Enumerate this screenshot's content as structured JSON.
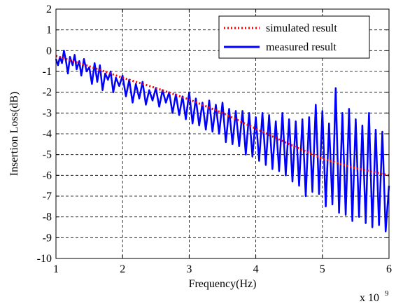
{
  "chart_data": {
    "type": "line",
    "xlabel": "Frequency(Hz)",
    "ylabel": "Insertion Loss(dB)",
    "x_exponent_label": "x 10",
    "x_exponent_power": "9",
    "xlim": [
      1,
      6
    ],
    "ylim": [
      -10,
      2
    ],
    "xticks": [
      1,
      2,
      3,
      4,
      5,
      6
    ],
    "yticks": [
      2,
      1,
      0,
      -1,
      -2,
      -3,
      -4,
      -5,
      -6,
      -7,
      -8,
      -9,
      -10
    ],
    "grid": true,
    "legend_position": "top-right",
    "series": [
      {
        "name": "simulated result",
        "color": "#ff0000",
        "style": "dotted",
        "x": [
          1.0,
          1.2,
          1.5,
          2.0,
          2.5,
          3.0,
          3.5,
          4.0,
          4.5,
          5.0,
          5.5,
          6.0
        ],
        "y": [
          -0.25,
          -0.45,
          -0.75,
          -1.3,
          -1.8,
          -2.35,
          -3.0,
          -3.75,
          -4.5,
          -5.2,
          -5.65,
          -6.0
        ]
      },
      {
        "name": "measured result",
        "color": "#0000ff",
        "style": "solid",
        "x": [
          1.0,
          1.03,
          1.06,
          1.09,
          1.12,
          1.15,
          1.18,
          1.21,
          1.25,
          1.28,
          1.31,
          1.35,
          1.38,
          1.42,
          1.46,
          1.5,
          1.54,
          1.58,
          1.62,
          1.66,
          1.7,
          1.74,
          1.78,
          1.82,
          1.86,
          1.9,
          1.95,
          2.0,
          2.05,
          2.1,
          2.15,
          2.2,
          2.25,
          2.3,
          2.35,
          2.4,
          2.45,
          2.5,
          2.55,
          2.6,
          2.65,
          2.7,
          2.75,
          2.8,
          2.85,
          2.9,
          2.95,
          3.0,
          3.05,
          3.1,
          3.15,
          3.2,
          3.25,
          3.3,
          3.35,
          3.4,
          3.45,
          3.5,
          3.55,
          3.6,
          3.65,
          3.7,
          3.75,
          3.8,
          3.85,
          3.9,
          3.95,
          4.0,
          4.05,
          4.1,
          4.15,
          4.2,
          4.25,
          4.3,
          4.35,
          4.4,
          4.45,
          4.5,
          4.55,
          4.6,
          4.65,
          4.7,
          4.75,
          4.8,
          4.85,
          4.9,
          4.95,
          5.0,
          5.05,
          5.1,
          5.15,
          5.2,
          5.25,
          5.3,
          5.35,
          5.4,
          5.45,
          5.5,
          5.55,
          5.6,
          5.65,
          5.7,
          5.75,
          5.8,
          5.85,
          5.9,
          5.95,
          6.0
        ],
        "y": [
          -0.4,
          -0.7,
          -0.3,
          -0.6,
          0.0,
          -0.5,
          -1.1,
          -0.3,
          -0.7,
          -0.2,
          -0.9,
          -0.5,
          -1.2,
          -0.4,
          -1.0,
          -0.8,
          -1.6,
          -0.6,
          -1.5,
          -0.7,
          -1.9,
          -1.1,
          -1.4,
          -1.0,
          -2.0,
          -1.3,
          -1.7,
          -1.2,
          -2.2,
          -1.4,
          -2.5,
          -1.6,
          -2.3,
          -1.5,
          -2.6,
          -1.9,
          -2.4,
          -1.8,
          -2.7,
          -1.9,
          -2.5,
          -2.0,
          -3.0,
          -2.1,
          -3.1,
          -2.2,
          -3.3,
          -2.0,
          -3.5,
          -2.3,
          -3.6,
          -2.5,
          -3.8,
          -2.4,
          -3.9,
          -2.6,
          -4.0,
          -2.5,
          -4.4,
          -2.8,
          -4.5,
          -2.9,
          -4.6,
          -2.9,
          -5.0,
          -3.0,
          -5.1,
          -3.2,
          -5.3,
          -3.0,
          -5.5,
          -3.1,
          -5.7,
          -3.4,
          -5.8,
          -3.0,
          -6.0,
          -3.3,
          -6.3,
          -3.4,
          -6.5,
          -3.3,
          -7.0,
          -3.2,
          -6.8,
          -2.6,
          -6.9,
          -2.9,
          -7.5,
          -3.5,
          -7.4,
          -1.8,
          -7.8,
          -3.0,
          -7.9,
          -2.8,
          -8.2,
          -3.3,
          -8.0,
          -3.6,
          -8.3,
          -3.0,
          -8.5,
          -3.8,
          -8.4,
          -3.9,
          -8.7,
          -6.5
        ]
      }
    ]
  }
}
